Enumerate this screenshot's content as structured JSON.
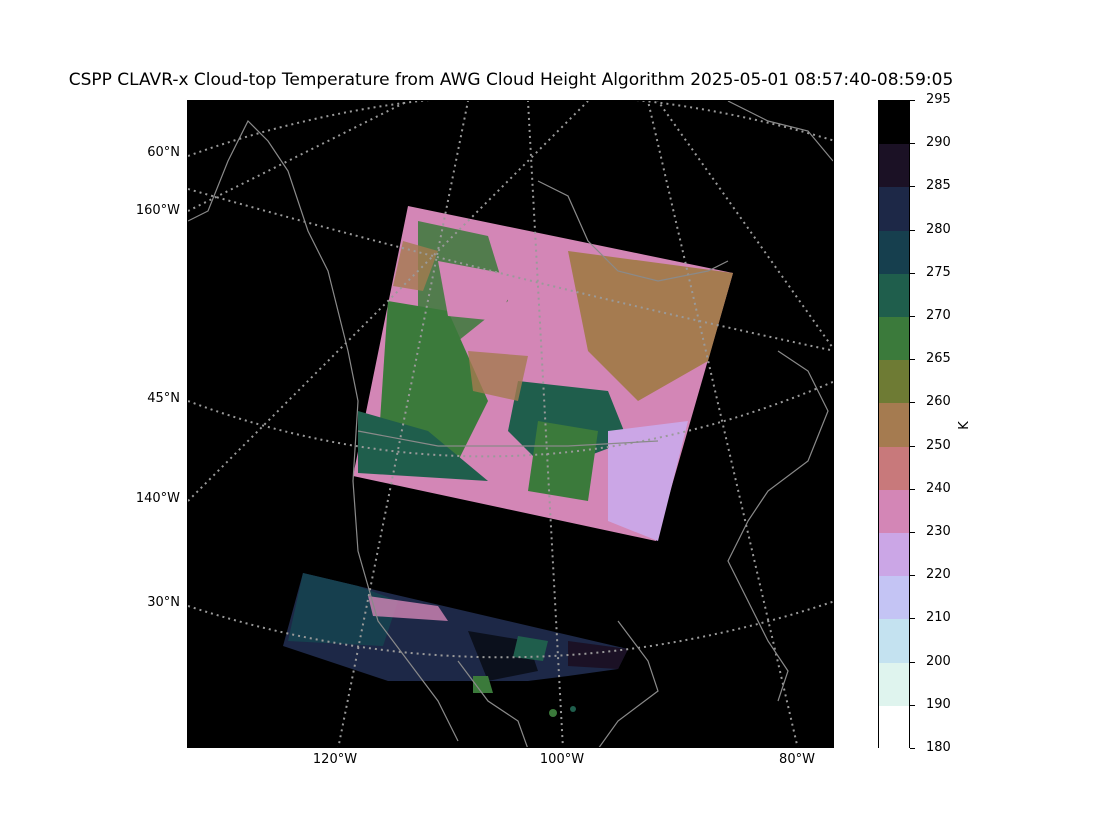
{
  "title": "CSPP CLAVR-x Cloud-top Temperature from AWG Cloud Height Algorithm 2025-05-01 08:57:40-08:59:05",
  "lat_labels": [
    "60°N",
    "160°W",
    "45°N",
    "140°W",
    "30°N"
  ],
  "lon_labels": [
    "120°W",
    "100°W",
    "80°W"
  ],
  "colorbar": {
    "unit": "K",
    "ticks": [
      "295",
      "290",
      "285",
      "280",
      "275",
      "270",
      "265",
      "260",
      "250",
      "240",
      "230",
      "220",
      "210",
      "200",
      "190",
      "180"
    ],
    "colors": [
      "#000000",
      "#1b1125",
      "#1d2847",
      "#163f4e",
      "#1f5e4c",
      "#3b7a3b",
      "#6e7b34",
      "#a57b50",
      "#c8797b",
      "#d386b6",
      "#cba6e6",
      "#c4c4f4",
      "#c4e2f0",
      "#dff4ee",
      "#ffffff"
    ]
  },
  "map_colors": {
    "background": "#000000",
    "coast": "#8a8a8a",
    "grid": "#9a9a9a",
    "pink": "#d386b6",
    "lavender": "#cba6e6",
    "brown": "#a57b50",
    "green": "#3b7a3b",
    "darkgreen": "#1f5e4c",
    "teal": "#163f4e",
    "navy": "#1d2847",
    "olive": "#6e7b34"
  }
}
